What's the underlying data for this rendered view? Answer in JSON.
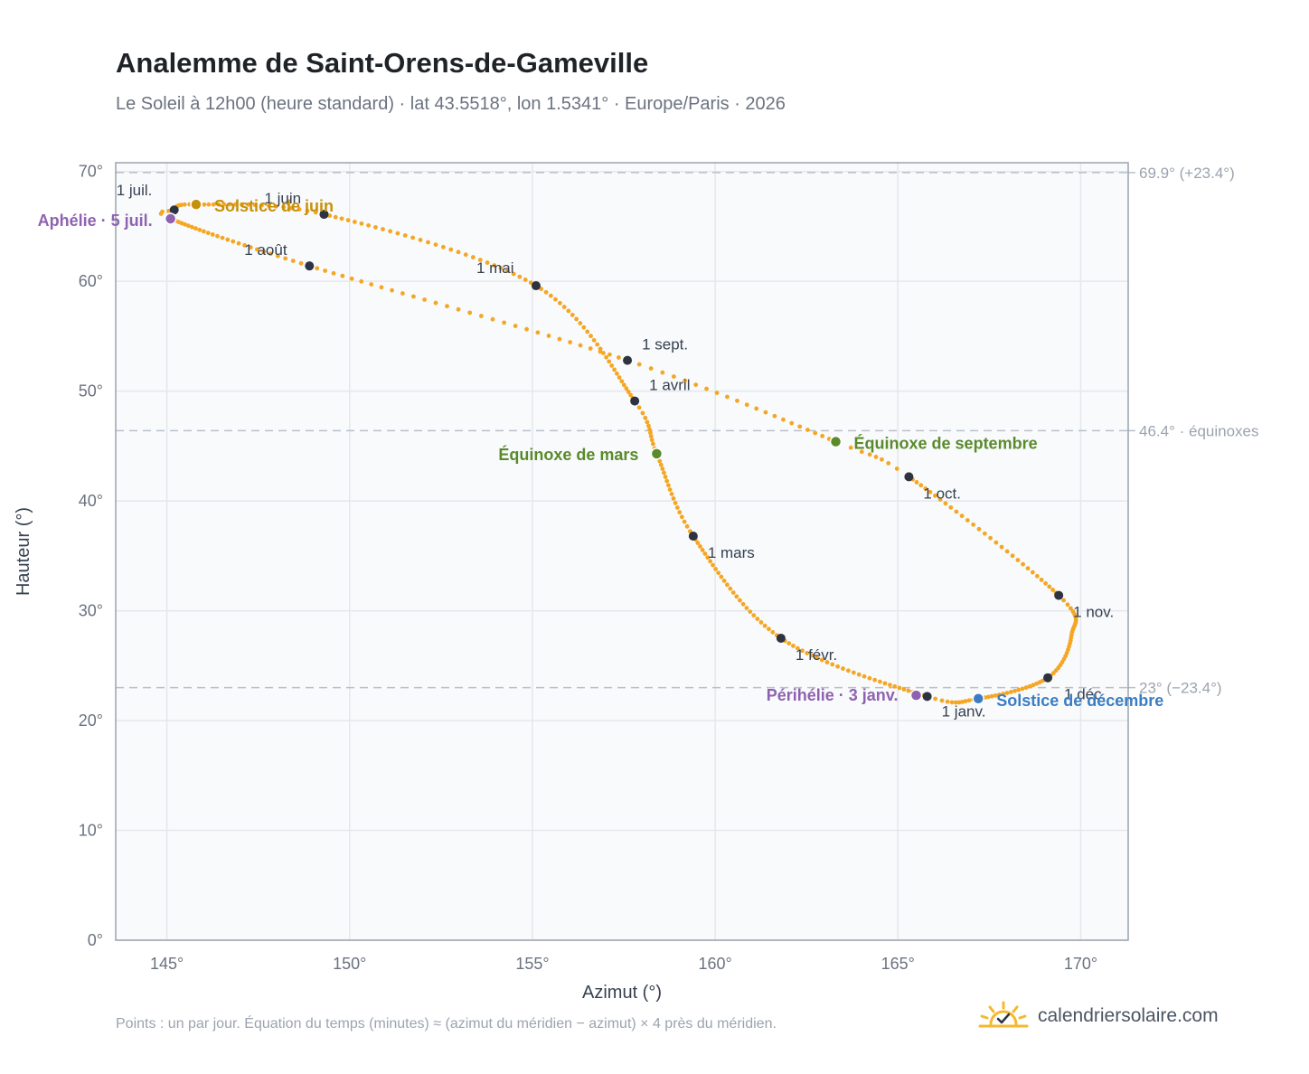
{
  "page": {
    "title": "Analemme de Saint-Orens-de-Gameville",
    "subtitle": "Le Soleil à 12h00 (heure standard) · lat 43.5518°, lon 1.5341° · Europe/Paris · 2026",
    "footnote": "Points : un par jour. Équation du temps (minutes) ≈ (azimut du méridien − azimut) × 4 près du méridien.",
    "brand": "calendriersolaire.com",
    "brand_icon": "sun-logo-icon"
  },
  "colors": {
    "curve": "#f5a623",
    "month_marker": "#2d3340",
    "solstice_june": "#c8900a",
    "solstice_december": "#3b7dc4",
    "equinox": "#5a8a2a",
    "perihelion_aphelion": "#8e62b0",
    "plot_background": "#f8fafc",
    "grid": "#e5e7eb",
    "reference_line": "#b8c0cc"
  },
  "chart_data": {
    "type": "scatter",
    "xlabel": "Azimut (°)",
    "ylabel": "Hauteur (°)",
    "xlim": [
      143.6,
      171.3
    ],
    "ylim": [
      0,
      70.8
    ],
    "x_ticks": [
      {
        "value": 145,
        "label": "145°"
      },
      {
        "value": 150,
        "label": "150°"
      },
      {
        "value": 155,
        "label": "155°"
      },
      {
        "value": 160,
        "label": "160°"
      },
      {
        "value": 165,
        "label": "165°"
      },
      {
        "value": 170,
        "label": "170°"
      }
    ],
    "y_ticks": [
      {
        "value": 0,
        "label": "0°"
      },
      {
        "value": 10,
        "label": "10°"
      },
      {
        "value": 20,
        "label": "20°"
      },
      {
        "value": 30,
        "label": "30°"
      },
      {
        "value": 40,
        "label": "40°"
      },
      {
        "value": 50,
        "label": "50°"
      },
      {
        "value": 60,
        "label": "60°"
      },
      {
        "value": 70,
        "label": "70°"
      }
    ],
    "grid": true,
    "reference_lines": [
      {
        "y": 69.9,
        "label": "69.9° (+23.4°)"
      },
      {
        "y": 46.4,
        "label": "46.4° · équinoxes"
      },
      {
        "y": 23.0,
        "label": "23° (−23.4°)"
      }
    ],
    "daily_path": {
      "description_days": "one point per day",
      "anchors": [
        {
          "day": 1,
          "az": 165.8,
          "alt": 22.2
        },
        {
          "day": 32,
          "az": 161.8,
          "alt": 27.5
        },
        {
          "day": 60,
          "az": 159.4,
          "alt": 36.8
        },
        {
          "day": 79,
          "az": 158.4,
          "alt": 44.3
        },
        {
          "day": 91,
          "az": 157.8,
          "alt": 49.1
        },
        {
          "day": 121,
          "az": 155.1,
          "alt": 59.6
        },
        {
          "day": 152,
          "az": 149.3,
          "alt": 66.1
        },
        {
          "day": 172,
          "az": 145.8,
          "alt": 67.0
        },
        {
          "day": 182,
          "az": 145.2,
          "alt": 66.5
        },
        {
          "day": 186,
          "az": 145.1,
          "alt": 65.7
        },
        {
          "day": 213,
          "az": 148.9,
          "alt": 61.4
        },
        {
          "day": 244,
          "az": 157.6,
          "alt": 52.8
        },
        {
          "day": 266,
          "az": 163.3,
          "alt": 45.4
        },
        {
          "day": 274,
          "az": 165.3,
          "alt": 42.2
        },
        {
          "day": 305,
          "az": 169.4,
          "alt": 31.4
        },
        {
          "day": 320,
          "az": 169.75,
          "alt": 27.8
        },
        {
          "day": 335,
          "az": 169.1,
          "alt": 23.9
        },
        {
          "day": 355,
          "az": 167.2,
          "alt": 22.0
        },
        {
          "day": 366,
          "az": 165.8,
          "alt": 22.2
        }
      ]
    },
    "month_markers": [
      {
        "label": "1 janv.",
        "az": 165.8,
        "alt": 22.2
      },
      {
        "label": "1 févr.",
        "az": 161.8,
        "alt": 27.5
      },
      {
        "label": "1 mars",
        "az": 159.4,
        "alt": 36.8
      },
      {
        "label": "1 avril",
        "az": 157.8,
        "alt": 49.1
      },
      {
        "label": "1 mai",
        "az": 155.1,
        "alt": 59.6
      },
      {
        "label": "1 juin",
        "az": 149.3,
        "alt": 66.1
      },
      {
        "label": "1 juil.",
        "az": 145.2,
        "alt": 66.5
      },
      {
        "label": "1 août",
        "az": 148.9,
        "alt": 61.4
      },
      {
        "label": "1 sept.",
        "az": 157.6,
        "alt": 52.8
      },
      {
        "label": "1 oct.",
        "az": 165.3,
        "alt": 42.2
      },
      {
        "label": "1 nov.",
        "az": 169.4,
        "alt": 31.4
      },
      {
        "label": "1 déc.",
        "az": 169.1,
        "alt": 23.9
      }
    ],
    "events": [
      {
        "label": "Solstice de juin",
        "az": 145.8,
        "alt": 67.0,
        "color": "#c8900a"
      },
      {
        "label": "Aphélie · 5 juil.",
        "az": 145.1,
        "alt": 65.7,
        "color": "#8e62b0"
      },
      {
        "label": "Équinoxe de mars",
        "az": 158.4,
        "alt": 44.3,
        "color": "#5a8a2a"
      },
      {
        "label": "Équinoxe de septembre",
        "az": 163.3,
        "alt": 45.4,
        "color": "#5a8a2a"
      },
      {
        "label": "Périhélie · 3 janv.",
        "az": 165.5,
        "alt": 22.3,
        "color": "#8e62b0"
      },
      {
        "label": "Solstice de décembre",
        "az": 167.2,
        "alt": 22.0,
        "color": "#3b7dc4"
      }
    ]
  }
}
